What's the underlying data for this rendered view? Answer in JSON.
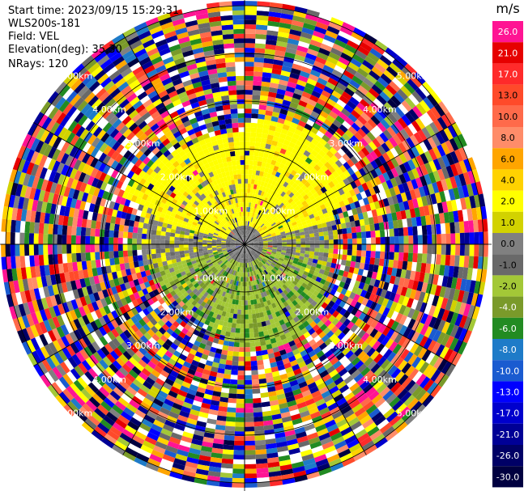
{
  "header": {
    "start_time": "Start time: 2023/09/15 15:29:31",
    "instrument": "WLS200s-181",
    "field": "Field: VEL",
    "elevation": "Elevation(deg): 35.30",
    "nrays": "NRays: 120"
  },
  "chart_data": {
    "type": "heatmap",
    "projection": "polar-ppi",
    "range_rings_km": [
      1,
      2,
      3,
      4,
      5
    ],
    "range_ring_labels": [
      "1.00km",
      "2.00km",
      "3.00km",
      "4.00km",
      "5.00km"
    ],
    "max_range_km": 5.1,
    "nrays": 120,
    "nearfield_pattern": "yellow (+2 to +4 m/s) north of radar, olive/green (-2 to -6 m/s) south, gray (0 m/s) around center; noisy multicolour beyond ~2.5 km",
    "colorbar": {
      "unit": "m/s",
      "levels": [
        {
          "label": "26.0",
          "color": "#ff1493"
        },
        {
          "label": "21.0",
          "color": "#e60000"
        },
        {
          "label": "17.0",
          "color": "#ff2a2a"
        },
        {
          "label": "13.0",
          "color": "#ff4a2a"
        },
        {
          "label": "10.0",
          "color": "#ff6a4a"
        },
        {
          "label": "8.0",
          "color": "#ff8c69"
        },
        {
          "label": "6.0",
          "color": "#ffa500"
        },
        {
          "label": "4.0",
          "color": "#ffd200"
        },
        {
          "label": "2.0",
          "color": "#ffff00"
        },
        {
          "label": "1.0",
          "color": "#d2d200"
        },
        {
          "label": "0.0",
          "color": "#808080"
        },
        {
          "label": "-1.0",
          "color": "#696969"
        },
        {
          "label": "-2.0",
          "color": "#a3c837"
        },
        {
          "label": "-4.0",
          "color": "#7a9a2a"
        },
        {
          "label": "-6.0",
          "color": "#228b22"
        },
        {
          "label": "-8.0",
          "color": "#1e7bc8"
        },
        {
          "label": "-10.0",
          "color": "#1a5bd0"
        },
        {
          "label": "-13.0",
          "color": "#0000ff"
        },
        {
          "label": "-17.0",
          "color": "#0000cd"
        },
        {
          "label": "-21.0",
          "color": "#000096"
        },
        {
          "label": "-26.0",
          "color": "#000066"
        },
        {
          "label": "-30.0",
          "color": "#000040"
        }
      ]
    }
  }
}
